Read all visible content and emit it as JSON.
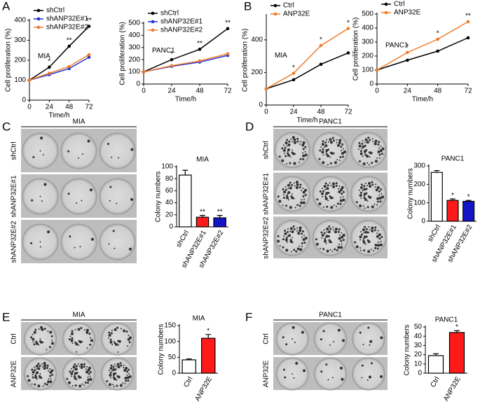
{
  "panel_letters": [
    "A",
    "B",
    "C",
    "D",
    "E",
    "F"
  ],
  "plates": [
    {
      "title": "MIA",
      "rows": [
        "shCtrl",
        "shANP32E#1",
        "shANP32E#2"
      ]
    },
    {
      "title": "PANC1",
      "rows": [
        "shCtrl",
        "shANP32E#1",
        "shANP32E#2"
      ]
    },
    {
      "title": "MIA",
      "rows": [
        "Ctrl",
        "ANP32E"
      ]
    },
    {
      "title": "PANC1",
      "rows": [
        "Ctrl",
        "ANP32E"
      ]
    }
  ],
  "chart_data": [
    {
      "type": "line",
      "label": "MIA",
      "xlabel": "Time/h",
      "ylabel": "Cell proliferation (%)",
      "x": [
        0,
        24,
        48,
        72
      ],
      "xlim": [
        0,
        72
      ],
      "xticks": [
        0,
        24,
        48,
        72
      ],
      "ylim": [
        0,
        400
      ],
      "yticks": [
        0,
        100,
        200,
        300,
        400
      ],
      "series": [
        {
          "name": "shCtrl",
          "color": "#000000",
          "values": [
            100,
            165,
            270,
            370
          ]
        },
        {
          "name": "shANP32E#1",
          "color": "#1f2fd6",
          "values": [
            100,
            128,
            158,
            215
          ]
        },
        {
          "name": "shANP32E#2",
          "color": "#f07b2a",
          "values": [
            100,
            135,
            168,
            228
          ]
        }
      ],
      "significance": [
        null,
        "*",
        "**",
        "**"
      ]
    },
    {
      "type": "line",
      "label": "PANC1",
      "xlabel": "Time/h",
      "ylabel": "Cell proliferation (%)",
      "x": [
        0,
        24,
        48,
        72
      ],
      "xlim": [
        0,
        72
      ],
      "xticks": [
        0,
        24,
        48,
        72
      ],
      "ylim": [
        0,
        500
      ],
      "yticks": [
        0,
        100,
        200,
        300,
        400,
        500
      ],
      "series": [
        {
          "name": "shCtrl",
          "color": "#000000",
          "values": [
            100,
            200,
            285,
            455
          ]
        },
        {
          "name": "shANP32E#1",
          "color": "#1f2fd6",
          "values": [
            100,
            145,
            180,
            235
          ]
        },
        {
          "name": "shANP32E#2",
          "color": "#f07b2a",
          "values": [
            100,
            150,
            190,
            248
          ]
        }
      ],
      "significance": [
        null,
        "*",
        "**",
        "**"
      ]
    },
    {
      "type": "line",
      "label": "MIA",
      "xlabel": "Time/h",
      "ylabel": "Cell proliferation (%)",
      "x": [
        0,
        24,
        48,
        72
      ],
      "xlim": [
        0,
        72
      ],
      "xticks": [
        0,
        24,
        48,
        72
      ],
      "ylim": [
        0,
        550
      ],
      "yticks": [
        0,
        200,
        400
      ],
      "series": [
        {
          "name": "Ctrl",
          "color": "#000000",
          "values": [
            100,
            155,
            250,
            320
          ]
        },
        {
          "name": "ANP32E",
          "color": "#f07b2a",
          "values": [
            100,
            195,
            365,
            470
          ]
        }
      ],
      "significance": [
        null,
        "*",
        "*",
        "*"
      ]
    },
    {
      "type": "line",
      "label": "PANC1",
      "xlabel": "Time/h",
      "ylabel": "Cell proliferation (%)",
      "x": [
        0,
        24,
        48,
        72
      ],
      "xlim": [
        0,
        72
      ],
      "xticks": [
        0,
        24,
        48,
        72
      ],
      "ylim": [
        0,
        500
      ],
      "yticks": [
        0,
        100,
        200,
        300,
        400,
        500
      ],
      "series": [
        {
          "name": "Ctrl",
          "color": "#000000",
          "values": [
            100,
            170,
            235,
            330
          ]
        },
        {
          "name": "ANP32E",
          "color": "#f07b2a",
          "values": [
            100,
            225,
            320,
            445
          ]
        }
      ],
      "significance": [
        null,
        "*",
        "*",
        "**"
      ]
    },
    {
      "type": "bar",
      "title": "MIA",
      "ylabel": "Colony numbers",
      "categories": [
        "shCtrl",
        "shANP32E#1",
        "shANP32E#2"
      ],
      "values": [
        86,
        16,
        15
      ],
      "errors": [
        8,
        3,
        4
      ],
      "colors": [
        "#ffffff",
        "#ff1a1a",
        "#1515c8"
      ],
      "ylim": [
        0,
        100
      ],
      "yticks": [
        0,
        20,
        40,
        60,
        80,
        100
      ],
      "significance": [
        null,
        "**",
        "**"
      ]
    },
    {
      "type": "bar",
      "title": "PANC1",
      "ylabel": "Colony numbers",
      "categories": [
        "shCtrl",
        "shANP32E#1",
        "shANP32E#2"
      ],
      "values": [
        265,
        113,
        108
      ],
      "errors": [
        10,
        8,
        5
      ],
      "colors": [
        "#ffffff",
        "#ff1a1a",
        "#1515c8"
      ],
      "ylim": [
        0,
        300
      ],
      "yticks": [
        0,
        100,
        200,
        300
      ],
      "significance": [
        null,
        "*",
        "*"
      ]
    },
    {
      "type": "bar",
      "title": "MIA",
      "ylabel": "Colony numbers",
      "categories": [
        "Ctrl",
        "ANP32E"
      ],
      "values": [
        42,
        110
      ],
      "errors": [
        3,
        12
      ],
      "colors": [
        "#ffffff",
        "#ff1a1a"
      ],
      "ylim": [
        0,
        150
      ],
      "yticks": [
        0,
        50,
        100,
        150
      ],
      "significance": [
        null,
        "*"
      ]
    },
    {
      "type": "bar",
      "title": "PANC1",
      "ylabel": "Colony numbers",
      "categories": [
        "Ctrl",
        "ANP32E"
      ],
      "values": [
        19,
        44
      ],
      "errors": [
        2,
        2
      ],
      "colors": [
        "#ffffff",
        "#ff1a1a"
      ],
      "ylim": [
        0,
        50
      ],
      "yticks": [
        0,
        10,
        20,
        30,
        40,
        50
      ],
      "significance": [
        null,
        "*"
      ]
    }
  ]
}
